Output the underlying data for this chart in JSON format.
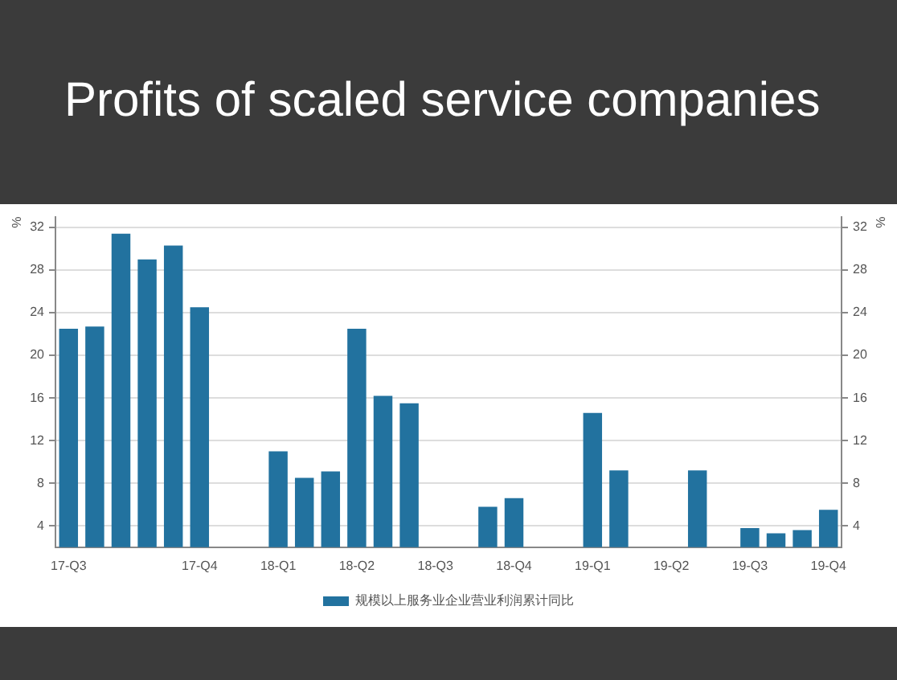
{
  "chart_data": {
    "type": "bar",
    "title": "Profits of scaled service companies",
    "categories": [
      "17-Q3",
      null,
      null,
      null,
      null,
      "17-Q4",
      null,
      null,
      "18-Q1",
      null,
      null,
      "18-Q2",
      null,
      null,
      "18-Q3",
      null,
      null,
      "18-Q4",
      null,
      null,
      "19-Q1",
      null,
      null,
      "19-Q2",
      null,
      null,
      "19-Q3",
      null,
      null,
      "19-Q4"
    ],
    "series": [
      {
        "name": "规模以上服务业企业营业利润累计同比",
        "color": "#22729f",
        "values": [
          22.5,
          22.7,
          31.4,
          29.0,
          30.3,
          24.5,
          null,
          null,
          11.0,
          8.5,
          9.1,
          22.5,
          16.2,
          15.5,
          null,
          null,
          5.8,
          6.6,
          null,
          null,
          14.6,
          9.2,
          null,
          null,
          9.2,
          null,
          3.8,
          3.3,
          3.6,
          5.5
        ]
      }
    ],
    "ylabel": "%",
    "y2label": "%",
    "ylim": [
      2,
      33
    ],
    "yticks": [
      4,
      8,
      12,
      16,
      20,
      24,
      28,
      32
    ],
    "y2lim": [
      2,
      33
    ],
    "y2ticks": [
      4,
      8,
      12,
      16,
      20,
      24,
      28,
      32
    ],
    "grid": "y",
    "legend": "bottom"
  }
}
